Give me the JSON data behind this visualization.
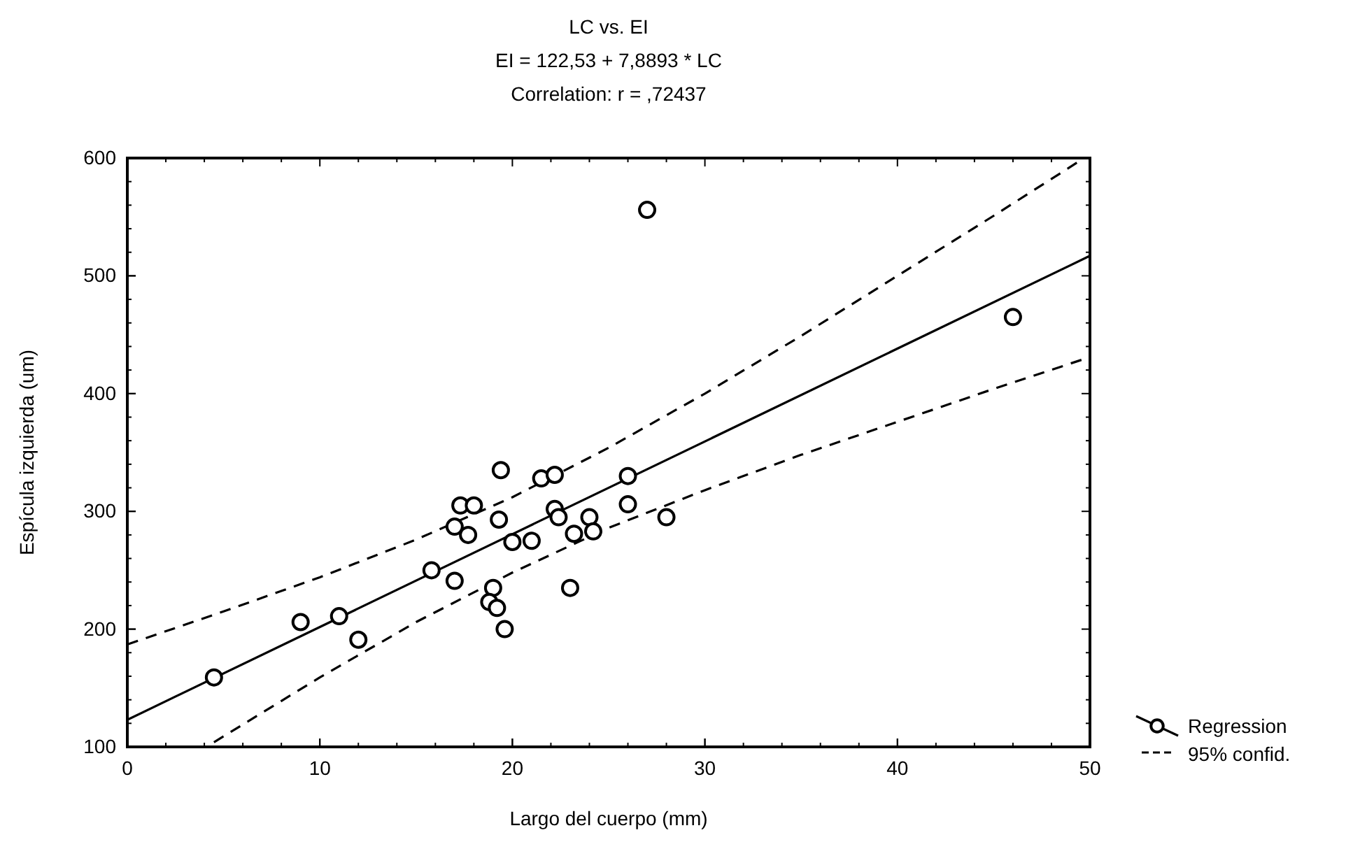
{
  "chart_data": {
    "type": "scatter",
    "title": "LC vs. EI",
    "subtitle": "EI = 122,53 + 7,8893 * LC\nCorrelation: r = ,72437",
    "xlabel": "Largo del cuerpo (mm)",
    "ylabel": "Espícula izquierda (um)",
    "xlim": [
      0,
      50
    ],
    "xticks": [
      0,
      10,
      20,
      30,
      40,
      50
    ],
    "ylim": [
      100,
      600
    ],
    "yticks": [
      100,
      200,
      300,
      400,
      500,
      600
    ],
    "grid": false,
    "legend": "bottom right",
    "x": [
      4.5,
      9,
      11,
      12,
      15.8,
      17,
      17,
      17.3,
      17.7,
      18,
      19,
      18.8,
      19.2,
      19.3,
      19.4,
      19.6,
      20,
      21,
      21.5,
      22.2,
      22.2,
      22.4,
      23,
      23.2,
      24,
      24.2,
      26,
      26,
      27,
      28,
      46
    ],
    "series": [
      {
        "color": "#000000",
        "marker": "circle",
        "values": [
          159,
          206,
          211,
          191,
          250,
          241,
          287,
          305,
          280,
          305,
          235,
          223,
          218,
          293,
          335,
          200,
          274,
          275,
          328,
          331,
          302,
          295,
          235,
          281,
          295,
          283,
          330,
          306,
          556,
          295,
          465
        ]
      },
      {
        "type": "line",
        "name": "Regression",
        "color": "#000000",
        "line_style": "solid",
        "marker": "none",
        "x": [
          0,
          50
        ],
        "values": [
          123,
          517
        ]
      },
      {
        "type": "line",
        "name": "95% confid.",
        "color": "#000000",
        "line_style": "dashed",
        "marker": "none",
        "x": [
          0,
          5,
          10,
          15,
          20,
          25,
          30,
          35,
          40,
          45,
          49.7
        ],
        "values": [
          187,
          215,
          244,
          276,
          312,
          354,
          400,
          449,
          500,
          551,
          600
        ]
      },
      {
        "type": "line",
        "color": "#000000",
        "line_style": "dashed",
        "marker": "none",
        "x": [
          4.5,
          10,
          15,
          20,
          25,
          30,
          35,
          40,
          45,
          50
        ],
        "values": [
          104,
          159,
          206,
          248,
          286,
          318,
          348,
          376,
          404,
          431
        ]
      }
    ]
  }
}
